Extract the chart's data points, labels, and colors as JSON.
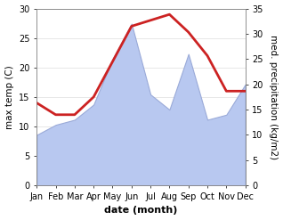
{
  "months": [
    "Jan",
    "Feb",
    "Mar",
    "Apr",
    "May",
    "Jun",
    "Jul",
    "Aug",
    "Sep",
    "Oct",
    "Nov",
    "Dec"
  ],
  "month_positions": [
    1,
    2,
    3,
    4,
    5,
    6,
    7,
    8,
    9,
    10,
    11,
    12
  ],
  "temp": [
    14.0,
    12.0,
    12.0,
    15.0,
    21.0,
    27.0,
    28.0,
    29.0,
    26.0,
    22.0,
    16.0,
    16.0
  ],
  "precip": [
    10.0,
    12.0,
    13.0,
    16.0,
    25.0,
    32.0,
    18.0,
    15.0,
    26.0,
    13.0,
    14.0,
    20.0
  ],
  "temp_color": "#cc2222",
  "precip_color": "#b8c8f0",
  "precip_edge_color": "#9aaad8",
  "temp_ylim": [
    0,
    30
  ],
  "precip_ylim": [
    0,
    35
  ],
  "temp_yticks": [
    0,
    5,
    10,
    15,
    20,
    25,
    30
  ],
  "precip_yticks": [
    0,
    5,
    10,
    15,
    20,
    25,
    30,
    35
  ],
  "ylabel_left": "max temp (C)",
  "ylabel_right": "med. precipitation (kg/m2)",
  "xlabel": "date (month)",
  "temp_linewidth": 2.0,
  "xlabel_fontsize": 8,
  "ylabel_fontsize": 7.5,
  "tick_fontsize": 7,
  "background_color": "#ffffff"
}
